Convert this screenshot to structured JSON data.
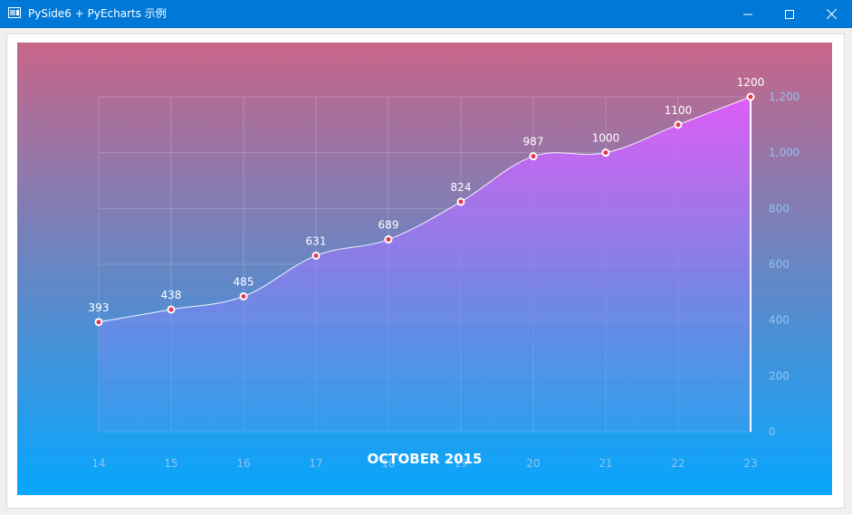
{
  "window": {
    "title": "PySide6 + PyEcharts 示例",
    "icon": "app-window-icon",
    "controls": [
      "minimize-icon",
      "maximize-icon",
      "close-icon"
    ]
  },
  "colors": {
    "titlebar": "#0078d7",
    "gradient_top": "#c86589",
    "gradient_bottom": "#06a7ff",
    "area_top": "#e05cff",
    "area_bottom": "#4a9df0",
    "line": "#ffffff",
    "axis_label": "#8fc4f0"
  },
  "chart_data": {
    "type": "area",
    "title": "OCTOBER 2015",
    "x": [
      "14",
      "15",
      "16",
      "17",
      "18",
      "19",
      "20",
      "21",
      "22",
      "23"
    ],
    "series": [
      {
        "values": [
          393,
          438,
          485,
          631,
          689,
          824,
          987,
          1000,
          1100,
          1200
        ],
        "smooth": true,
        "show_labels": true
      }
    ],
    "y_ticks": [
      "0",
      "200",
      "400",
      "600",
      "800",
      "1,000",
      "1,200"
    ],
    "ylim": [
      0,
      1200
    ],
    "y_axis_position": "right",
    "grid": true,
    "legend": false
  }
}
